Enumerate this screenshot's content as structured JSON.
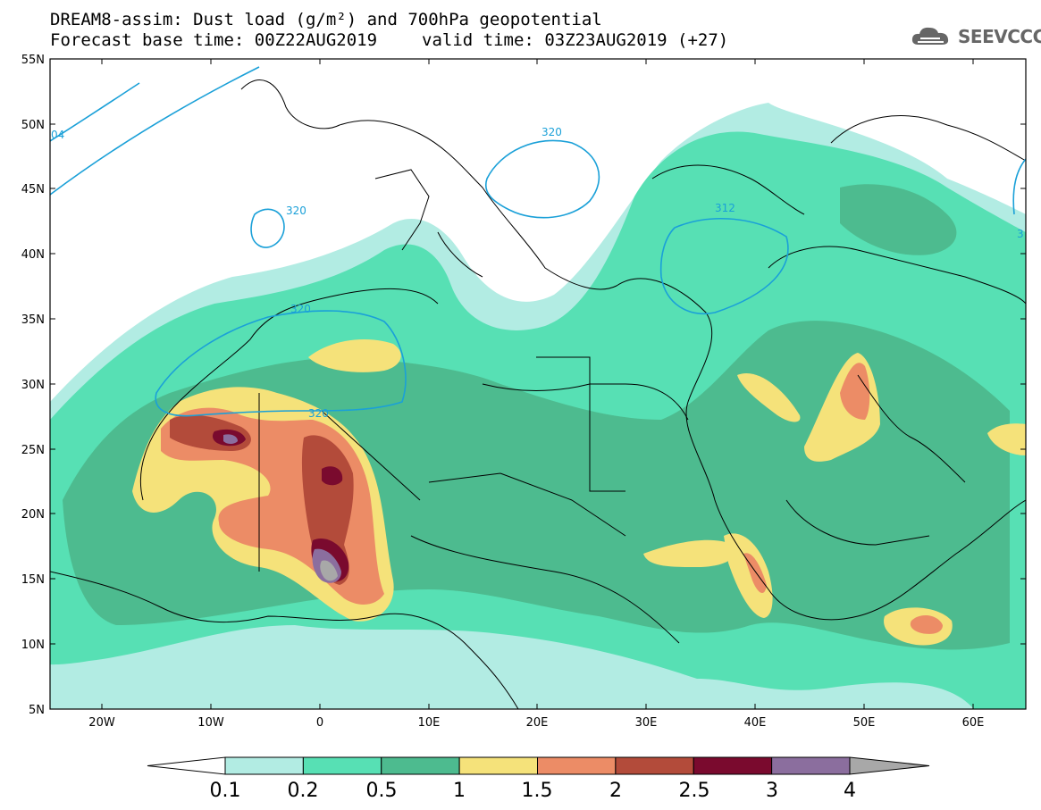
{
  "title": {
    "line1": "DREAM8-assim: Dust load (g/m²) and 700hPa geopotential",
    "base_time": "Forecast base time: 00Z22AUG2019",
    "valid_time": "valid time: 03Z23AUG2019 (+27)"
  },
  "logo": {
    "text": "SEEVCCC",
    "icon": "cloud-icon"
  },
  "axes": {
    "lat_labels": [
      "55N",
      "50N",
      "45N",
      "40N",
      "35N",
      "30N",
      "25N",
      "20N",
      "15N",
      "10N",
      "5N"
    ],
    "lon_labels": [
      "20W",
      "10W",
      "0",
      "10E",
      "20E",
      "30E",
      "40E",
      "50E",
      "60E"
    ]
  },
  "contours": {
    "color": "#1aa0d8",
    "labels": [
      "320",
      "320",
      "312",
      "320",
      "320",
      "04",
      "3"
    ]
  },
  "colorbar": {
    "levels": [
      "0.1",
      "0.2",
      "0.5",
      "1",
      "1.5",
      "2",
      "2.5",
      "3",
      "4"
    ],
    "colors": [
      "#ffffff",
      "#b2ece3",
      "#57e0b4",
      "#4dbb8f",
      "#f5e27a",
      "#ec8c66",
      "#b34b3a",
      "#7a0a2e",
      "#8b6e9e",
      "#a8a8a8"
    ]
  },
  "dust_colors": {
    "c01": "#b2ece3",
    "c02": "#57e0b4",
    "c05": "#4dbb8f",
    "c1": "#f5e27a",
    "c15": "#ec8c66",
    "c2": "#b34b3a",
    "c25": "#7a0a2e",
    "c3": "#8b6e9e",
    "c4": "#a8a8a8"
  }
}
